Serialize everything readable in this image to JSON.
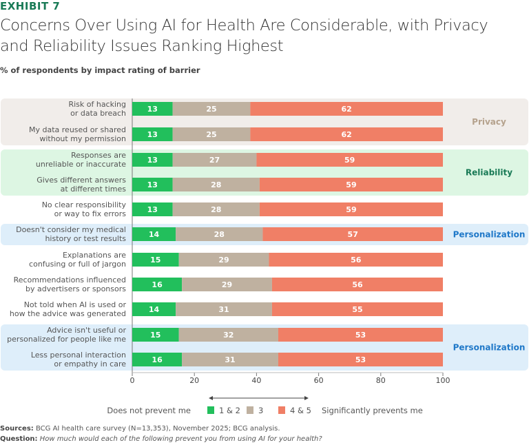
{
  "exhibit": "EXHIBIT 7",
  "title_line1": "Concerns Over Using AI for Health Are Considerable, with Privacy",
  "title_line2": "and Reliability Issues Ranking Highest",
  "subtitle": "% of respondents by impact rating of barrier",
  "colors": {
    "r12": "#22BF5C",
    "r3": "#BFB1A0",
    "r45": "#F07F66",
    "privacy_bg": "#F1EDEA",
    "reliability_bg": "#DDF6E3",
    "personalization_bg": "#DEEEFA",
    "privacy_text": "#B5A28D",
    "reliability_text": "#197A56",
    "personalization_text": "#1F78C8"
  },
  "chart_data": {
    "type": "bar",
    "orientation": "horizontal",
    "stacked": true,
    "xlim": [
      0,
      100
    ],
    "xticks": [
      0,
      20,
      40,
      60,
      80,
      100
    ],
    "categories": [
      [
        "Risk of hacking",
        "or data breach"
      ],
      [
        "My data reused or shared",
        "without my permission"
      ],
      [
        "Responses are",
        "unreliable or inaccurate"
      ],
      [
        "Gives different answers",
        "at different times"
      ],
      [
        "No clear responsibility",
        "or way to fix errors"
      ],
      [
        "Doesn't consider my medical",
        "history or test results"
      ],
      [
        "Explanations are",
        "confusing or full of jargon"
      ],
      [
        "Recommendations influenced",
        "by advertisers or sponsors"
      ],
      [
        "Not told when AI is used or",
        "how the advice was generated"
      ],
      [
        "Advice isn't useful or",
        "personalized for people like me"
      ],
      [
        "Less personal interaction",
        "or empathy in care"
      ]
    ],
    "series": [
      {
        "name": "1 & 2",
        "values": [
          13,
          13,
          13,
          13,
          13,
          14,
          15,
          16,
          14,
          15,
          16
        ]
      },
      {
        "name": "3",
        "values": [
          25,
          25,
          27,
          28,
          28,
          28,
          29,
          29,
          31,
          32,
          31
        ]
      },
      {
        "name": "4 & 5",
        "values": [
          62,
          62,
          59,
          59,
          59,
          57,
          56,
          56,
          55,
          53,
          53
        ]
      }
    ],
    "groups": [
      {
        "label": "Privacy",
        "rows": [
          0,
          1
        ],
        "style": "privacy"
      },
      {
        "label": "Reliability",
        "rows": [
          2,
          3,
          4
        ],
        "style": "reliability"
      },
      {
        "label": "Personalization",
        "rows": [
          5,
          5
        ],
        "style": "personalization"
      },
      {
        "label": "Personalization",
        "rows": [
          9,
          10
        ],
        "style": "personalization"
      }
    ],
    "legend": {
      "left": "Does not prevent me",
      "right": "Significantly prevents me",
      "placement": "bottom"
    }
  },
  "sources_label": "Sources:",
  "sources_text": "BCG AI health care survey (N=13,353), November 2025; BCG analysis.",
  "question_label": "Question:",
  "question_text": "How much would each of the following prevent you from using AI for your health?"
}
